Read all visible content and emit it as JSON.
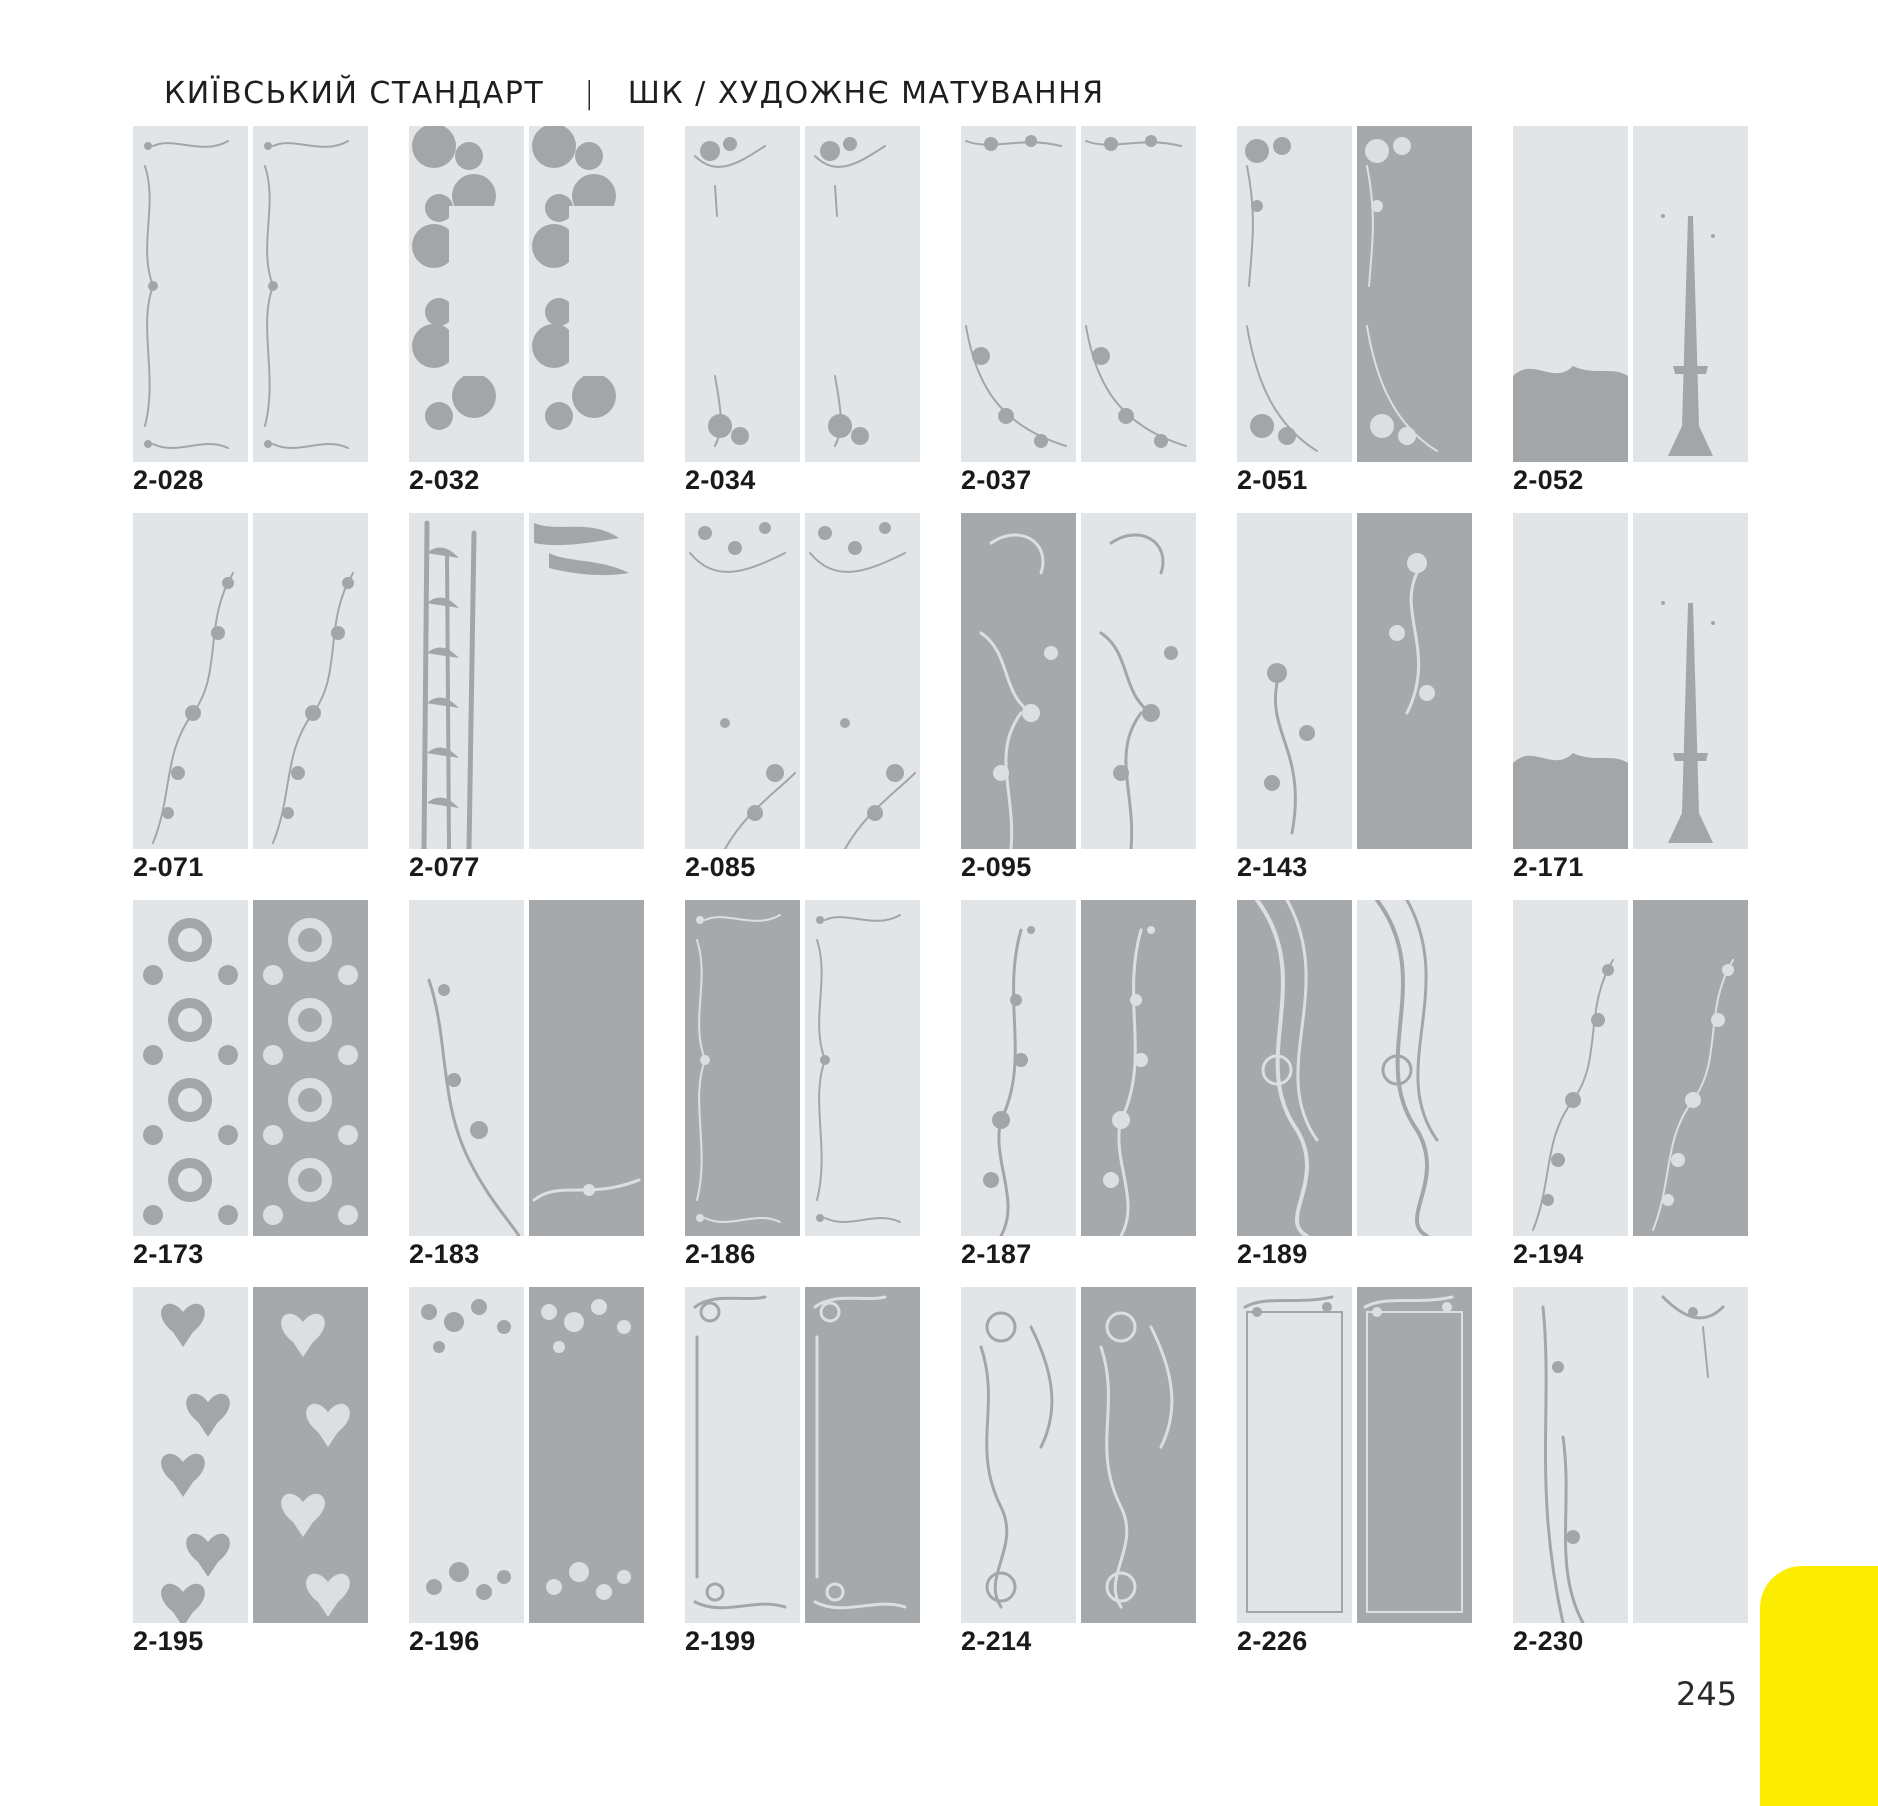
{
  "header": {
    "left_title": "КИЇВСЬКИЙ СТАНДАРТ",
    "separator": "|",
    "right_title": "ШК / ХУДОЖНЄ МАТУВАННЯ"
  },
  "colors": {
    "frosted_panel": "#e2e5e8",
    "clear_panel": "#a6a9ac",
    "motif": "#a3a6a9",
    "tab": "#fcec00"
  },
  "items": [
    {
      "code": "2-028",
      "panels": [
        "light",
        "light"
      ],
      "motif": "scroll-frame"
    },
    {
      "code": "2-032",
      "panels": [
        "light",
        "light"
      ],
      "motif": "roses"
    },
    {
      "code": "2-034",
      "panels": [
        "light",
        "light"
      ],
      "motif": "flower-corners"
    },
    {
      "code": "2-037",
      "panels": [
        "light",
        "light"
      ],
      "motif": "vine-corners"
    },
    {
      "code": "2-051",
      "panels": [
        "light",
        "dark"
      ],
      "motif": "floral-corners"
    },
    {
      "code": "2-052",
      "panels": [
        "light",
        "light"
      ],
      "motif": "eiffel-tower"
    },
    {
      "code": "2-071",
      "panels": [
        "light",
        "light"
      ],
      "motif": "vine"
    },
    {
      "code": "2-077",
      "panels": [
        "light",
        "light"
      ],
      "motif": "bamboo"
    },
    {
      "code": "2-085",
      "panels": [
        "light",
        "light"
      ],
      "motif": "flowers-butterflies"
    },
    {
      "code": "2-095",
      "panels": [
        "dark",
        "light"
      ],
      "motif": "swirl-floral"
    },
    {
      "code": "2-143",
      "panels": [
        "light",
        "dark"
      ],
      "motif": "daisy-swirl"
    },
    {
      "code": "2-171",
      "panels": [
        "light",
        "light"
      ],
      "motif": "eiffel-tower"
    },
    {
      "code": "2-173",
      "panels": [
        "light",
        "dark"
      ],
      "motif": "damask"
    },
    {
      "code": "2-183",
      "panels": [
        "light",
        "dark"
      ],
      "motif": "floral-swirl"
    },
    {
      "code": "2-186",
      "panels": [
        "dark",
        "light"
      ],
      "motif": "scroll-frame"
    },
    {
      "code": "2-187",
      "panels": [
        "light",
        "dark"
      ],
      "motif": "rose-vine"
    },
    {
      "code": "2-189",
      "panels": [
        "dark",
        "light"
      ],
      "motif": "waves"
    },
    {
      "code": "2-194",
      "panels": [
        "light",
        "dark"
      ],
      "motif": "vine"
    },
    {
      "code": "2-195",
      "panels": [
        "light",
        "dark"
      ],
      "motif": "hearts"
    },
    {
      "code": "2-196",
      "panels": [
        "light",
        "dark"
      ],
      "motif": "leaf-clusters"
    },
    {
      "code": "2-199",
      "panels": [
        "light",
        "dark"
      ],
      "motif": "corner-swirls"
    },
    {
      "code": "2-214",
      "panels": [
        "light",
        "dark"
      ],
      "motif": "ornament"
    },
    {
      "code": "2-226",
      "panels": [
        "light",
        "dark"
      ],
      "motif": "frame"
    },
    {
      "code": "2-230",
      "panels": [
        "light",
        "light"
      ],
      "motif": "grass-floral"
    }
  ],
  "page_number": "245"
}
